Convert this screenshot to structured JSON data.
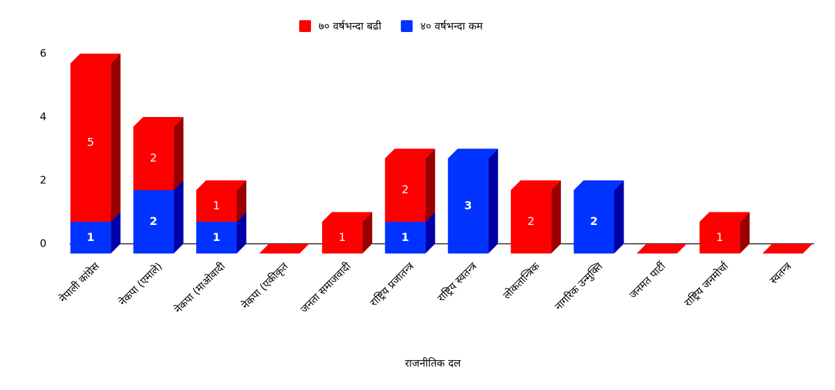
{
  "chart_data": {
    "type": "bar3d_stacked",
    "x_label": "राजनीतिक दल",
    "categories": [
      "नेपाली कांग्रेस",
      "नेकपा (एमाले)",
      "नेकपा (माओवादी",
      "नेकपा (एकीकृत",
      "जनता समाजवादी",
      "राष्ट्रिय प्रजातन्त्र",
      "राष्ट्रिय स्वतन्त्र",
      "लोकतान्त्रिक",
      "नागरिक उन्मुक्ति",
      "जनमत पार्टी",
      "राष्ट्रिय जनमोर्चा",
      "स्वतन्त्र"
    ],
    "series": [
      {
        "name": "४० वर्षभन्दा कम",
        "color": "#0033ff",
        "side": "#0000a8",
        "values": [
          1,
          2,
          1,
          0,
          0,
          1,
          3,
          0,
          2,
          0,
          0,
          0
        ]
      },
      {
        "name": "७० वर्षभन्दा बढी",
        "color": "#ff0000",
        "side": "#9a0000",
        "values": [
          5,
          2,
          1,
          0,
          1,
          2,
          0,
          2,
          0,
          0,
          1,
          0
        ]
      }
    ],
    "ylim": [
      0,
      6
    ],
    "yticks": [
      0,
      2,
      4,
      6
    ],
    "legend": "top"
  }
}
